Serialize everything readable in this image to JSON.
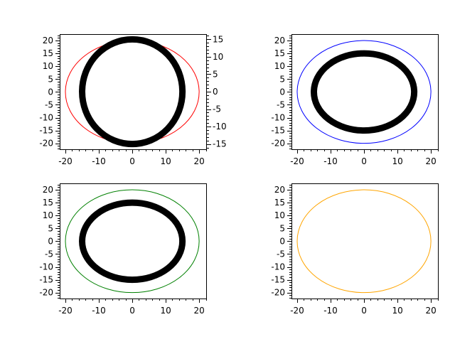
{
  "chart_data": [
    {
      "type": "line",
      "xlim": [
        -21.7,
        22.1
      ],
      "ylim": [
        -22.3,
        22.5
      ],
      "y2lim": [
        -16.5,
        16.5
      ],
      "xticks": [
        -20,
        -10,
        0,
        10,
        20
      ],
      "yticks": [
        -20,
        -15,
        -10,
        -5,
        0,
        5,
        10,
        15,
        20
      ],
      "y2ticks": [
        -15,
        -10,
        -5,
        0,
        5,
        10,
        15
      ],
      "series": [
        {
          "shape": "circle",
          "radius": 20,
          "color": "#ff0000",
          "axis": "left",
          "linewidth": "thin"
        },
        {
          "shape": "circle",
          "radius": 15,
          "color": "#000000",
          "axis": "right",
          "linewidth": "thick"
        }
      ]
    },
    {
      "type": "line",
      "xlim": [
        -21.7,
        22.1
      ],
      "ylim": [
        -22.3,
        22.5
      ],
      "xticks": [
        -20,
        -10,
        0,
        10,
        20
      ],
      "yticks": [
        -20,
        -15,
        -10,
        -5,
        0,
        5,
        10,
        15,
        20
      ],
      "series": [
        {
          "shape": "circle",
          "radius": 20,
          "color": "#0000ff",
          "axis": "left",
          "linewidth": "thin"
        },
        {
          "shape": "circle",
          "radius": 15,
          "color": "#000000",
          "axis": "left",
          "linewidth": "thick"
        }
      ]
    },
    {
      "type": "line",
      "xlim": [
        -21.7,
        22.1
      ],
      "ylim": [
        -22.3,
        22.5
      ],
      "xticks": [
        -20,
        -10,
        0,
        10,
        20
      ],
      "yticks": [
        -20,
        -15,
        -10,
        -5,
        0,
        5,
        10,
        15,
        20
      ],
      "series": [
        {
          "shape": "circle",
          "radius": 20,
          "color": "#008000",
          "axis": "left",
          "linewidth": "thin"
        },
        {
          "shape": "circle",
          "radius": 15,
          "color": "#000000",
          "axis": "left",
          "linewidth": "thick"
        }
      ]
    },
    {
      "type": "line",
      "xlim": [
        -21.7,
        22.1
      ],
      "ylim": [
        -22.3,
        22.5
      ],
      "xticks": [
        -20,
        -10,
        0,
        10,
        20
      ],
      "yticks": [
        -20,
        -15,
        -10,
        -5,
        0,
        5,
        10,
        15,
        20
      ],
      "series": [
        {
          "shape": "circle",
          "radius": 20,
          "color": "#ffa500",
          "axis": "left",
          "linewidth": "thin"
        }
      ]
    }
  ]
}
